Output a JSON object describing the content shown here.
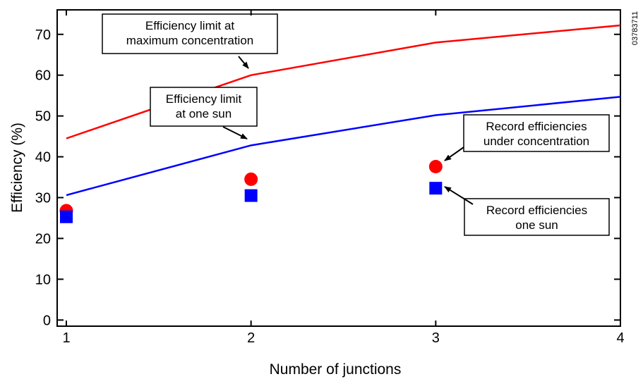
{
  "chart_data": {
    "type": "line",
    "title": "",
    "xlabel": "Number of junctions",
    "ylabel": "Efficiency (%)",
    "xlim": [
      1,
      4
    ],
    "ylim": [
      -1.5,
      76
    ],
    "x_ticks": [
      "1",
      "2",
      "3",
      "4"
    ],
    "y_ticks": [
      "0",
      "10",
      "20",
      "30",
      "40",
      "50",
      "60",
      "70"
    ],
    "grid": false,
    "legend": "none",
    "side_label": "03783711",
    "series": [
      {
        "style": "line",
        "color": "#ff0000",
        "x": [
          1,
          2,
          3,
          4
        ],
        "y": [
          44.5,
          60,
          68,
          72.2
        ]
      },
      {
        "style": "line",
        "color": "#0000ff",
        "x": [
          1,
          2,
          3,
          4
        ],
        "y": [
          30.6,
          42.8,
          50.2,
          54.7
        ]
      },
      {
        "style": "circle",
        "color": "#ff0000",
        "x": [
          1,
          2,
          3
        ],
        "y": [
          26.8,
          34.5,
          37.6
        ]
      },
      {
        "style": "square",
        "color": "#0000ff",
        "x": [
          1,
          2,
          3
        ],
        "y": [
          25.3,
          30.5,
          32.3
        ]
      }
    ],
    "annotations": [
      {
        "lines": [
          "Efficiency limit at",
          "maximum concentration"
        ],
        "target_x": 2,
        "target_y": 60
      },
      {
        "lines": [
          "Efficiency limit",
          "at one sun"
        ],
        "target_x": 2,
        "target_y": 42.8
      },
      {
        "lines": [
          "Record efficiencies",
          "under concentration"
        ],
        "target_x": 3,
        "target_y": 37.6
      },
      {
        "lines": [
          "Record efficiencies",
          "one sun"
        ],
        "target_x": 3,
        "target_y": 32.3
      }
    ]
  }
}
